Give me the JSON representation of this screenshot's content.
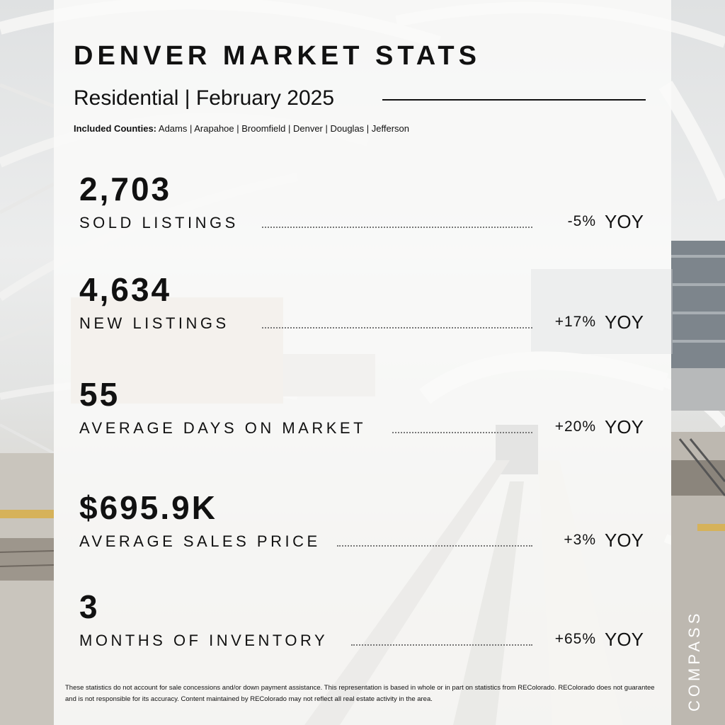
{
  "header": {
    "title": "DENVER MARKET STATS",
    "subtitle": "Residential | February 2025",
    "counties_label": "Included Counties:",
    "counties": "Adams | Arapahoe | Broomfield | Denver | Douglas | Jefferson"
  },
  "stats": [
    {
      "value": "2,703",
      "label": "SOLD LISTINGS",
      "change": "-5%",
      "period": "YOY"
    },
    {
      "value": "4,634",
      "label": "NEW LISTINGS",
      "change": "+17%",
      "period": "YOY"
    },
    {
      "value": "55",
      "label": "AVERAGE DAYS ON MARKET",
      "change": "+20%",
      "period": "YOY"
    },
    {
      "value": "$695.9K",
      "label": "AVERAGE SALES PRICE",
      "change": "+3%",
      "period": "YOY"
    },
    {
      "value": "3",
      "label": "MONTHS OF INVENTORY",
      "change": "+65%",
      "period": "YOY"
    }
  ],
  "footer": {
    "disclaimer": "These statistics do not account for sale concessions and/or down payment assistance. This representation is based in whole or in part on statistics from REColorado. REColorado does not guarantee and is not responsible for its accuracy. Content maintained by REColorado may not reflect all real estate activity in the area."
  },
  "brand": {
    "name": "COMPASS"
  },
  "colors": {
    "text": "#111111",
    "panel": "#fafaf9",
    "brand": "#ffffff"
  }
}
